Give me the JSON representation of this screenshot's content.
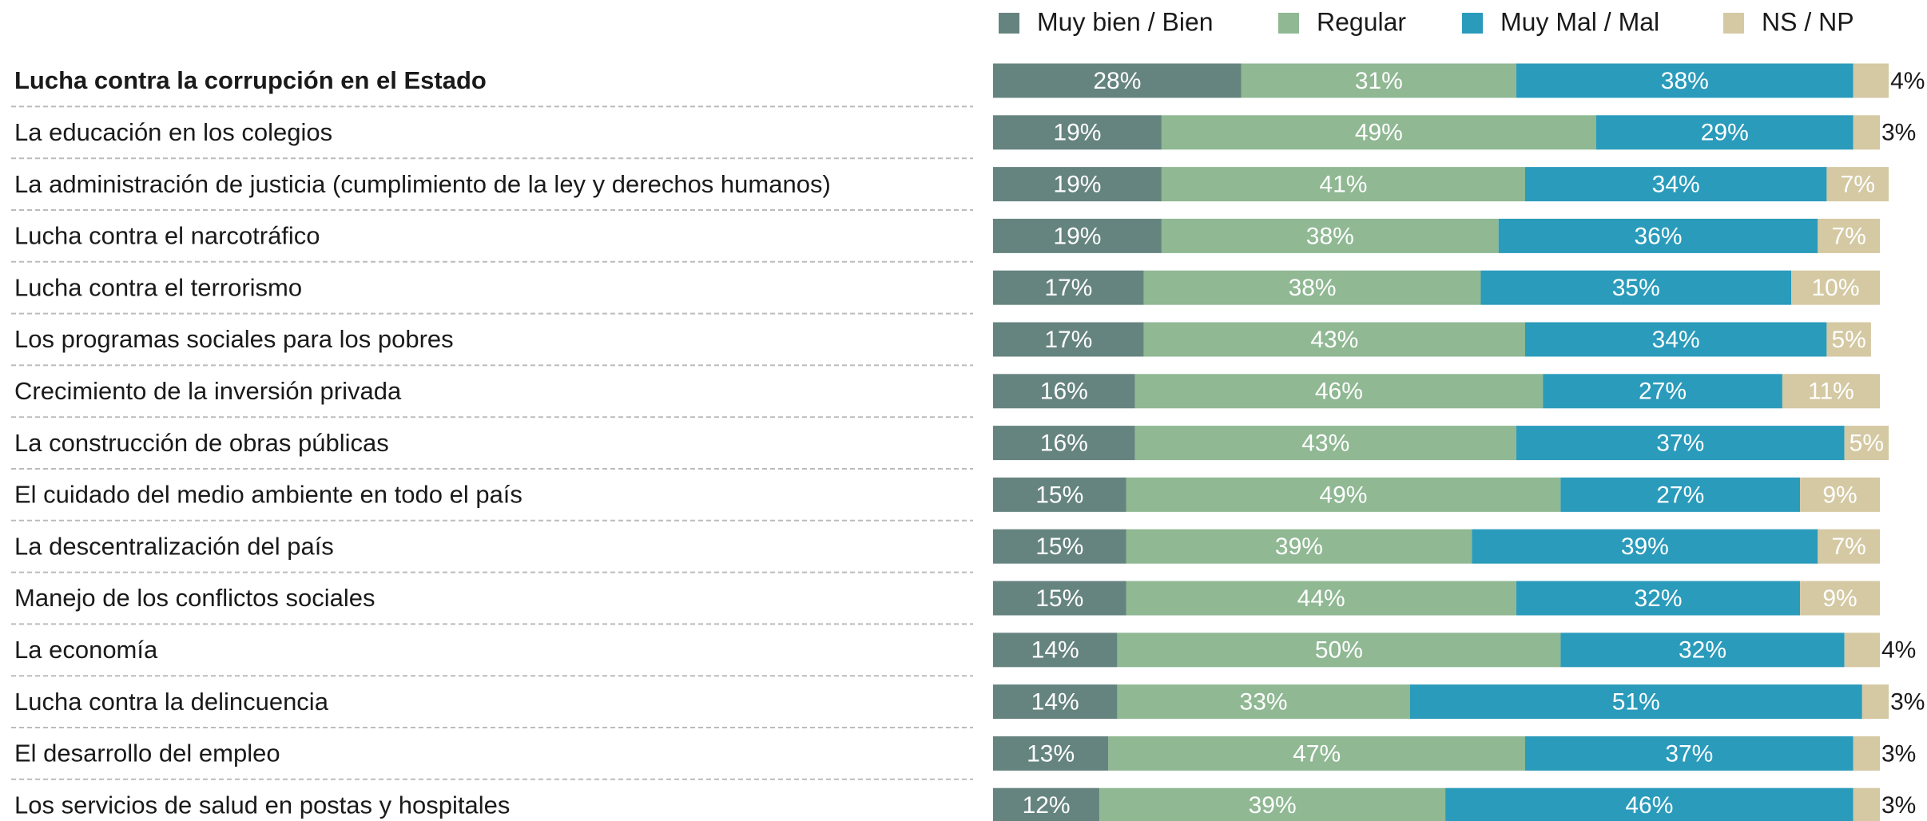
{
  "chart_data": {
    "type": "stacked_bar_horizontal",
    "categories": [
      "Lucha contra la corrupción en el Estado",
      "La educación en los colegios",
      "La administración de justicia (cumplimiento de la ley y derechos humanos)",
      "Lucha contra el narcotráfico",
      "Lucha contra el terrorismo",
      "Los programas sociales para los pobres",
      "Crecimiento de la inversión privada",
      "La construcción de obras públicas",
      "El cuidado del medio ambiente en todo el país",
      "La descentralización del país",
      "Manejo de los conflictos sociales",
      "La economía",
      "Lucha contra la delincuencia",
      "El desarrollo del empleo",
      "Los servicios de salud en postas y hospitales"
    ],
    "series": [
      {
        "name": "Muy bien / Bien",
        "color": "#66847f",
        "values": [
          28,
          19,
          19,
          19,
          17,
          17,
          16,
          16,
          15,
          15,
          15,
          14,
          14,
          13,
          12
        ],
        "value_labels": [
          "28%",
          "19%",
          "19%",
          "19%",
          "17%",
          "17%",
          "16%",
          "16%",
          "15%",
          "15%",
          "15%",
          "14%",
          "14%",
          "13%",
          "12%"
        ]
      },
      {
        "name": "Regular",
        "color": "#8fb893",
        "values": [
          31,
          49,
          41,
          38,
          38,
          43,
          46,
          43,
          49,
          39,
          44,
          50,
          33,
          47,
          39
        ],
        "value_labels": [
          "31%",
          "49%",
          "41%",
          "38%",
          "38%",
          "43%",
          "46%",
          "43%",
          "49%",
          "39%",
          "44%",
          "50%",
          "33%",
          "47%",
          "39%"
        ]
      },
      {
        "name": "Muy Mal / Mal",
        "color": "#2a9bbb",
        "values": [
          38,
          29,
          34,
          36,
          35,
          34,
          27,
          37,
          27,
          39,
          32,
          32,
          51,
          37,
          46
        ],
        "value_labels": [
          "38%",
          "29%",
          "34%",
          "36%",
          "35%",
          "34%",
          "27%",
          "37%",
          "27%",
          "39%",
          "32%",
          "32%",
          "51%",
          "37%",
          "46%"
        ]
      },
      {
        "name": "NS / NP",
        "color": "#d4c9a3",
        "values": [
          4,
          3,
          7,
          7,
          10,
          5,
          11,
          5,
          9,
          7,
          9,
          4,
          3,
          3,
          3
        ],
        "value_labels": [
          "4%",
          "3%",
          "7%",
          "7%",
          "10%",
          "5%",
          "11%",
          "5%",
          "9%",
          "7%",
          "9%",
          "4%",
          "3%",
          "3%",
          "3%"
        ]
      }
    ]
  }
}
